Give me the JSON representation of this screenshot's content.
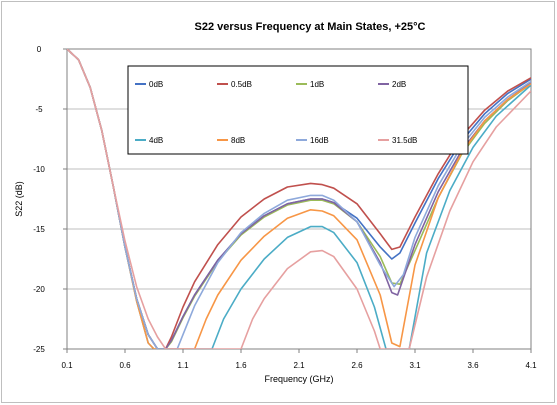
{
  "chart_data": {
    "type": "line",
    "title": "S22 versus Frequency at Main States, +25°C",
    "xlabel": "Frequency (GHz)",
    "ylabel": "S22 (dB)",
    "xlim": [
      0.1,
      4.1
    ],
    "ylim": [
      -25,
      0
    ],
    "xticks": [
      "0.1",
      "0.6",
      "1.1",
      "1.6",
      "2.1",
      "2.6",
      "3.1",
      "3.6",
      "4.1"
    ],
    "yticks": [
      "0",
      "-5",
      "-10",
      "-15",
      "-20",
      "-25"
    ],
    "grid": "horizontal",
    "legend_position": "top-left inside",
    "series": [
      {
        "name": "0dB",
        "color": "#4472C4",
        "points": [
          [
            0.1,
            0
          ],
          [
            0.2,
            -0.9
          ],
          [
            0.3,
            -3.2
          ],
          [
            0.4,
            -6.8
          ],
          [
            0.5,
            -11.5
          ],
          [
            0.6,
            -16.5
          ],
          [
            0.7,
            -20.8
          ],
          [
            0.8,
            -23.8
          ],
          [
            0.88,
            -25
          ],
          [
            0.95,
            -25
          ],
          [
            1.0,
            -24.3
          ],
          [
            1.1,
            -22.3
          ],
          [
            1.2,
            -20.5
          ],
          [
            1.4,
            -17.6
          ],
          [
            1.6,
            -15.4
          ],
          [
            1.8,
            -13.9
          ],
          [
            2.0,
            -12.9
          ],
          [
            2.2,
            -12.5
          ],
          [
            2.3,
            -12.5
          ],
          [
            2.4,
            -12.8
          ],
          [
            2.6,
            -14.1
          ],
          [
            2.8,
            -16.5
          ],
          [
            2.9,
            -17.5
          ],
          [
            2.97,
            -17.0
          ],
          [
            3.1,
            -14.5
          ],
          [
            3.3,
            -10.8
          ],
          [
            3.5,
            -7.7
          ],
          [
            3.7,
            -5.4
          ],
          [
            3.9,
            -3.7
          ],
          [
            4.1,
            -2.5
          ]
        ]
      },
      {
        "name": "0.5dB",
        "color": "#C0504D",
        "points": [
          [
            0.1,
            0
          ],
          [
            0.2,
            -0.9
          ],
          [
            0.3,
            -3.2
          ],
          [
            0.4,
            -6.8
          ],
          [
            0.5,
            -11.5
          ],
          [
            0.6,
            -16.5
          ],
          [
            0.7,
            -20.8
          ],
          [
            0.8,
            -23.8
          ],
          [
            0.88,
            -25
          ],
          [
            0.95,
            -25
          ],
          [
            1.0,
            -24.0
          ],
          [
            1.1,
            -21.5
          ],
          [
            1.2,
            -19.4
          ],
          [
            1.4,
            -16.3
          ],
          [
            1.6,
            -14.0
          ],
          [
            1.8,
            -12.5
          ],
          [
            2.0,
            -11.5
          ],
          [
            2.2,
            -11.2
          ],
          [
            2.3,
            -11.3
          ],
          [
            2.4,
            -11.6
          ],
          [
            2.6,
            -12.9
          ],
          [
            2.8,
            -15.4
          ],
          [
            2.9,
            -16.7
          ],
          [
            2.97,
            -16.5
          ],
          [
            3.1,
            -14.0
          ],
          [
            3.3,
            -10.4
          ],
          [
            3.5,
            -7.3
          ],
          [
            3.7,
            -5.1
          ],
          [
            3.9,
            -3.5
          ],
          [
            4.1,
            -2.4
          ]
        ]
      },
      {
        "name": "1dB",
        "color": "#9BBB59",
        "points": [
          [
            0.1,
            0
          ],
          [
            0.2,
            -0.9
          ],
          [
            0.3,
            -3.2
          ],
          [
            0.4,
            -6.8
          ],
          [
            0.5,
            -11.5
          ],
          [
            0.6,
            -16.5
          ],
          [
            0.7,
            -20.8
          ],
          [
            0.8,
            -23.8
          ],
          [
            0.88,
            -25
          ],
          [
            0.95,
            -25
          ],
          [
            1.0,
            -24.4
          ],
          [
            1.1,
            -22.4
          ],
          [
            1.2,
            -20.6
          ],
          [
            1.4,
            -17.7
          ],
          [
            1.6,
            -15.5
          ],
          [
            1.8,
            -14.0
          ],
          [
            2.0,
            -13.0
          ],
          [
            2.2,
            -12.6
          ],
          [
            2.3,
            -12.6
          ],
          [
            2.4,
            -12.9
          ],
          [
            2.6,
            -14.4
          ],
          [
            2.8,
            -17.3
          ],
          [
            2.9,
            -19.5
          ],
          [
            2.97,
            -19.6
          ],
          [
            3.1,
            -16.8
          ],
          [
            3.3,
            -12.4
          ],
          [
            3.5,
            -8.8
          ],
          [
            3.7,
            -6.2
          ],
          [
            3.9,
            -4.3
          ],
          [
            4.1,
            -2.9
          ]
        ]
      },
      {
        "name": "2dB",
        "color": "#8064A2",
        "points": [
          [
            0.1,
            0
          ],
          [
            0.2,
            -0.9
          ],
          [
            0.3,
            -3.2
          ],
          [
            0.4,
            -6.8
          ],
          [
            0.5,
            -11.5
          ],
          [
            0.6,
            -16.5
          ],
          [
            0.7,
            -20.8
          ],
          [
            0.8,
            -23.8
          ],
          [
            0.88,
            -25
          ],
          [
            0.95,
            -25
          ],
          [
            1.0,
            -24.3
          ],
          [
            1.1,
            -22.3
          ],
          [
            1.2,
            -20.5
          ],
          [
            1.4,
            -17.6
          ],
          [
            1.6,
            -15.4
          ],
          [
            1.8,
            -13.9
          ],
          [
            2.0,
            -12.9
          ],
          [
            2.2,
            -12.5
          ],
          [
            2.3,
            -12.5
          ],
          [
            2.4,
            -12.8
          ],
          [
            2.6,
            -14.4
          ],
          [
            2.8,
            -17.8
          ],
          [
            2.9,
            -20.3
          ],
          [
            2.95,
            -20.5
          ],
          [
            3.1,
            -16.3
          ],
          [
            3.3,
            -11.9
          ],
          [
            3.5,
            -8.5
          ],
          [
            3.7,
            -6.0
          ],
          [
            3.9,
            -4.2
          ],
          [
            4.1,
            -2.8
          ]
        ]
      },
      {
        "name": "4dB",
        "color": "#4BACC6",
        "points": [
          [
            0.1,
            0
          ],
          [
            0.2,
            -0.9
          ],
          [
            0.3,
            -3.2
          ],
          [
            0.4,
            -6.8
          ],
          [
            0.5,
            -11.5
          ],
          [
            0.6,
            -16.5
          ],
          [
            0.7,
            -21.0
          ],
          [
            0.8,
            -24.5
          ],
          [
            0.85,
            -25
          ],
          [
            1.35,
            -25
          ],
          [
            1.45,
            -22.5
          ],
          [
            1.6,
            -20.0
          ],
          [
            1.8,
            -17.5
          ],
          [
            2.0,
            -15.7
          ],
          [
            2.2,
            -14.8
          ],
          [
            2.3,
            -14.8
          ],
          [
            2.4,
            -15.3
          ],
          [
            2.6,
            -17.8
          ],
          [
            2.75,
            -21.5
          ],
          [
            2.85,
            -25
          ],
          [
            3.05,
            -25
          ],
          [
            3.2,
            -17.0
          ],
          [
            3.4,
            -11.8
          ],
          [
            3.6,
            -8.2
          ],
          [
            3.8,
            -5.6
          ],
          [
            4.1,
            -3.0
          ]
        ]
      },
      {
        "name": "8dB",
        "color": "#F79646",
        "points": [
          [
            0.1,
            0
          ],
          [
            0.2,
            -0.9
          ],
          [
            0.3,
            -3.2
          ],
          [
            0.4,
            -6.8
          ],
          [
            0.5,
            -11.5
          ],
          [
            0.6,
            -16.5
          ],
          [
            0.7,
            -21.0
          ],
          [
            0.8,
            -24.5
          ],
          [
            0.85,
            -25
          ],
          [
            1.2,
            -25
          ],
          [
            1.3,
            -22.5
          ],
          [
            1.4,
            -20.5
          ],
          [
            1.6,
            -17.6
          ],
          [
            1.8,
            -15.6
          ],
          [
            2.0,
            -14.1
          ],
          [
            2.2,
            -13.4
          ],
          [
            2.3,
            -13.5
          ],
          [
            2.4,
            -13.9
          ],
          [
            2.6,
            -15.9
          ],
          [
            2.8,
            -20.5
          ],
          [
            2.9,
            -24.5
          ],
          [
            2.97,
            -24.8
          ],
          [
            3.1,
            -18.0
          ],
          [
            3.3,
            -12.4
          ],
          [
            3.5,
            -8.7
          ],
          [
            3.7,
            -6.0
          ],
          [
            3.9,
            -4.2
          ],
          [
            4.1,
            -2.9
          ]
        ]
      },
      {
        "name": "16dB",
        "color": "#8EA9DB",
        "points": [
          [
            0.1,
            0
          ],
          [
            0.2,
            -0.9
          ],
          [
            0.3,
            -3.2
          ],
          [
            0.4,
            -6.8
          ],
          [
            0.5,
            -11.5
          ],
          [
            0.6,
            -16.5
          ],
          [
            0.7,
            -20.8
          ],
          [
            0.8,
            -23.8
          ],
          [
            0.88,
            -25
          ],
          [
            1.05,
            -25
          ],
          [
            1.1,
            -23.8
          ],
          [
            1.2,
            -21.4
          ],
          [
            1.4,
            -17.8
          ],
          [
            1.6,
            -15.3
          ],
          [
            1.8,
            -13.7
          ],
          [
            2.0,
            -12.6
          ],
          [
            2.2,
            -12.2
          ],
          [
            2.3,
            -12.2
          ],
          [
            2.4,
            -12.6
          ],
          [
            2.6,
            -14.4
          ],
          [
            2.8,
            -18.0
          ],
          [
            2.92,
            -19.8
          ],
          [
            3.0,
            -18.8
          ],
          [
            3.1,
            -15.7
          ],
          [
            3.3,
            -11.4
          ],
          [
            3.5,
            -8.1
          ],
          [
            3.7,
            -5.7
          ],
          [
            3.9,
            -4.0
          ],
          [
            4.1,
            -2.7
          ]
        ]
      },
      {
        "name": "31.5dB",
        "color": "#E6A0A0",
        "points": [
          [
            0.1,
            0
          ],
          [
            0.2,
            -0.9
          ],
          [
            0.3,
            -3.2
          ],
          [
            0.4,
            -6.8
          ],
          [
            0.5,
            -11.5
          ],
          [
            0.6,
            -16.0
          ],
          [
            0.7,
            -19.8
          ],
          [
            0.8,
            -22.5
          ],
          [
            0.88,
            -24.0
          ],
          [
            0.95,
            -25
          ],
          [
            1.6,
            -25
          ],
          [
            1.7,
            -22.5
          ],
          [
            1.8,
            -20.8
          ],
          [
            2.0,
            -18.3
          ],
          [
            2.2,
            -16.9
          ],
          [
            2.3,
            -16.8
          ],
          [
            2.4,
            -17.3
          ],
          [
            2.6,
            -20.0
          ],
          [
            2.75,
            -23.5
          ],
          [
            2.8,
            -25
          ],
          [
            3.05,
            -25
          ],
          [
            3.2,
            -19.0
          ],
          [
            3.4,
            -13.5
          ],
          [
            3.6,
            -9.4
          ],
          [
            3.8,
            -6.5
          ],
          [
            4.1,
            -3.5
          ]
        ]
      }
    ]
  }
}
